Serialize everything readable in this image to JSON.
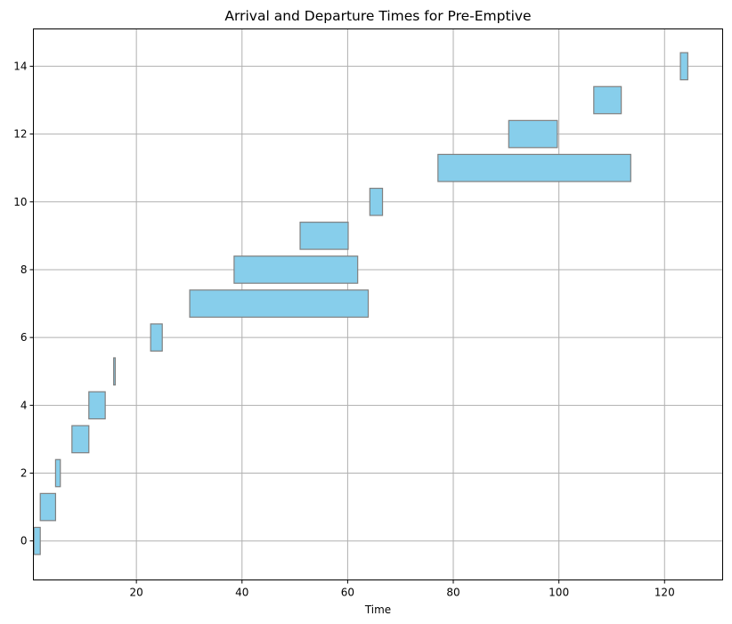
{
  "chart_data": {
    "type": "bar",
    "orientation": "horizontal-range",
    "title": "Arrival and Departure Times for Pre-Emptive",
    "xlabel": "Time",
    "ylabel": "",
    "xlim": [
      0.5,
      131
    ],
    "ylim": [
      -1.15,
      15.1
    ],
    "xticks": [
      20,
      40,
      60,
      80,
      100,
      120
    ],
    "yticks": [
      0,
      2,
      4,
      6,
      8,
      10,
      12,
      14
    ],
    "grid": true,
    "bar_color": "#87ceeb",
    "edge_color": "#808080",
    "bars": [
      {
        "y": 0,
        "start": 0.6,
        "end": 1.8
      },
      {
        "y": 1,
        "start": 1.8,
        "end": 4.7
      },
      {
        "y": 2,
        "start": 4.7,
        "end": 5.6
      },
      {
        "y": 3,
        "start": 7.8,
        "end": 11.0
      },
      {
        "y": 4,
        "start": 11.0,
        "end": 14.1
      },
      {
        "y": 5,
        "start": 15.7,
        "end": 16.0
      },
      {
        "y": 6,
        "start": 22.7,
        "end": 24.9
      },
      {
        "y": 7,
        "start": 30.1,
        "end": 63.9
      },
      {
        "y": 8,
        "start": 38.5,
        "end": 61.9
      },
      {
        "y": 9,
        "start": 51.0,
        "end": 60.1
      },
      {
        "y": 10,
        "start": 64.2,
        "end": 66.6
      },
      {
        "y": 11,
        "start": 77.1,
        "end": 113.6
      },
      {
        "y": 12,
        "start": 90.5,
        "end": 99.7
      },
      {
        "y": 13,
        "start": 106.6,
        "end": 111.8
      },
      {
        "y": 14,
        "start": 123.0,
        "end": 124.4
      }
    ]
  }
}
